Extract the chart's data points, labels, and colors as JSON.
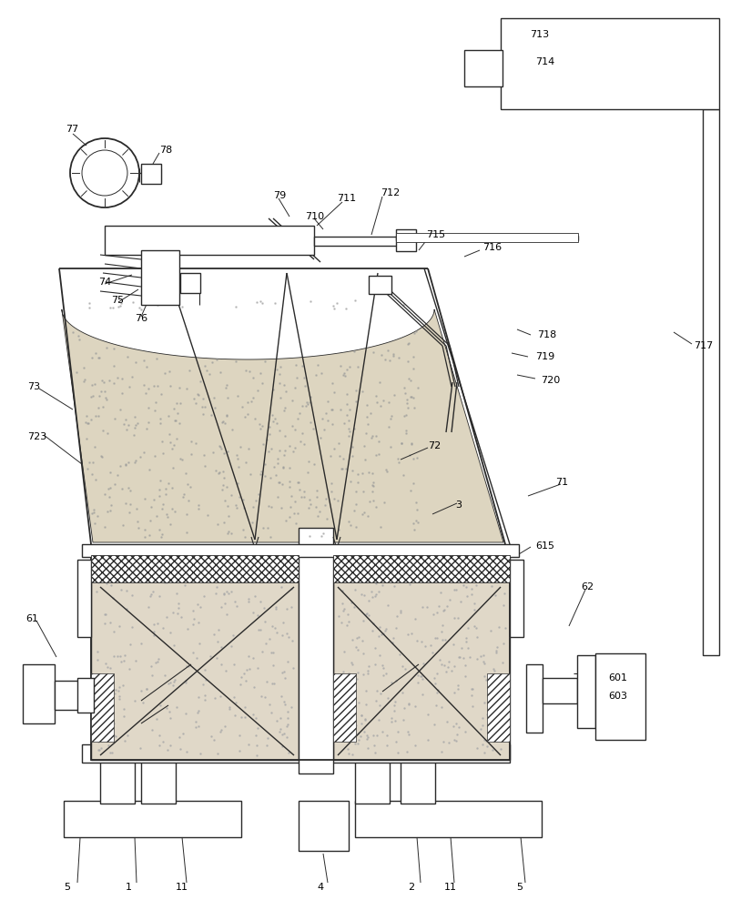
{
  "bg_color": "#ffffff",
  "lc": "#2a2a2a",
  "sand_fc": "#e0d8c8",
  "sand_dot": "#888888",
  "figsize": [
    8.04,
    10.0
  ],
  "dpi": 100,
  "lw": 1.0,
  "fs": 8.0
}
